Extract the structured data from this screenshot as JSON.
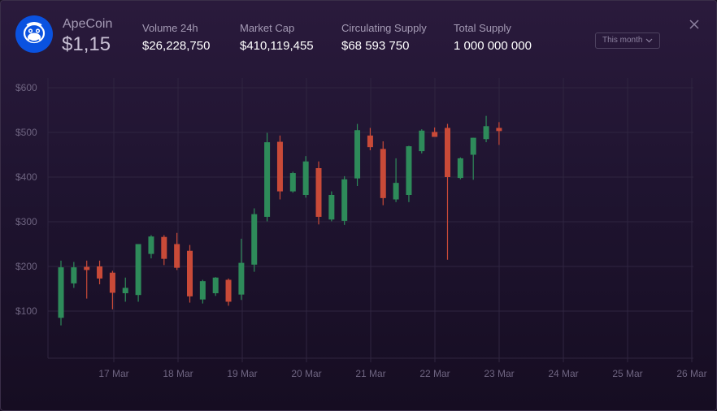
{
  "header": {
    "coin_name": "ApeCoin",
    "price": "$1,15",
    "stats": [
      {
        "label": "Volume 24h",
        "value": "$26,228,750"
      },
      {
        "label": "Market Cap",
        "value": "$410,119,455"
      },
      {
        "label": "Circulating Supply",
        "value": "$68 593 750"
      },
      {
        "label": "Total Supply",
        "value": "1 000 000 000"
      }
    ],
    "timeframe": "This month"
  },
  "icons": {
    "logo": "ape-logo-icon",
    "dropdown": "chevron-down-icon",
    "close": "close-icon"
  },
  "colors": {
    "up": "#2e8b5a",
    "down": "#c94a38",
    "grid": "#2f2540",
    "tick": "#6e6480",
    "logo_bg": "#0a52e0"
  },
  "chart_data": {
    "type": "candlestick",
    "x_tick_labels": [
      "17 Mar",
      "18 Mar",
      "19 Mar",
      "20 Mar",
      "21 Mar",
      "22 Mar",
      "23 Mar",
      "24 Mar",
      "25 Mar",
      "26 Mar"
    ],
    "y_tick_labels": [
      "$100",
      "$200",
      "$300",
      "$400",
      "$500",
      "$600"
    ],
    "ylim": [
      0,
      615
    ],
    "grid": true,
    "candles": [
      {
        "o": 85,
        "h": 213,
        "l": 68,
        "c": 198
      },
      {
        "o": 162,
        "h": 210,
        "l": 152,
        "c": 198
      },
      {
        "o": 199,
        "h": 213,
        "l": 128,
        "c": 192
      },
      {
        "o": 200,
        "h": 213,
        "l": 160,
        "c": 173
      },
      {
        "o": 186,
        "h": 190,
        "l": 104,
        "c": 141
      },
      {
        "o": 140,
        "h": 175,
        "l": 121,
        "c": 152
      },
      {
        "o": 136,
        "h": 250,
        "l": 121,
        "c": 250
      },
      {
        "o": 228,
        "h": 270,
        "l": 218,
        "c": 267
      },
      {
        "o": 266,
        "h": 270,
        "l": 203,
        "c": 217
      },
      {
        "o": 250,
        "h": 275,
        "l": 192,
        "c": 197
      },
      {
        "o": 235,
        "h": 248,
        "l": 119,
        "c": 133
      },
      {
        "o": 126,
        "h": 170,
        "l": 117,
        "c": 167
      },
      {
        "o": 140,
        "h": 176,
        "l": 134,
        "c": 175
      },
      {
        "o": 170,
        "h": 173,
        "l": 112,
        "c": 121
      },
      {
        "o": 137,
        "h": 262,
        "l": 125,
        "c": 208
      },
      {
        "o": 204,
        "h": 330,
        "l": 188,
        "c": 317
      },
      {
        "o": 311,
        "h": 499,
        "l": 301,
        "c": 478
      },
      {
        "o": 479,
        "h": 493,
        "l": 350,
        "c": 368
      },
      {
        "o": 368,
        "h": 412,
        "l": 365,
        "c": 409
      },
      {
        "o": 360,
        "h": 447,
        "l": 354,
        "c": 435
      },
      {
        "o": 420,
        "h": 435,
        "l": 294,
        "c": 311
      },
      {
        "o": 305,
        "h": 368,
        "l": 301,
        "c": 360
      },
      {
        "o": 302,
        "h": 402,
        "l": 293,
        "c": 395
      },
      {
        "o": 397,
        "h": 519,
        "l": 380,
        "c": 505
      },
      {
        "o": 493,
        "h": 510,
        "l": 460,
        "c": 467
      },
      {
        "o": 463,
        "h": 480,
        "l": 337,
        "c": 353
      },
      {
        "o": 350,
        "h": 442,
        "l": 344,
        "c": 387
      },
      {
        "o": 360,
        "h": 470,
        "l": 344,
        "c": 469
      },
      {
        "o": 458,
        "h": 507,
        "l": 453,
        "c": 504
      },
      {
        "o": 501,
        "h": 511,
        "l": 491,
        "c": 490
      },
      {
        "o": 510,
        "h": 519,
        "l": 215,
        "c": 400
      },
      {
        "o": 398,
        "h": 444,
        "l": 395,
        "c": 442
      },
      {
        "o": 450,
        "h": 488,
        "l": 394,
        "c": 488
      },
      {
        "o": 485,
        "h": 537,
        "l": 478,
        "c": 514
      },
      {
        "o": 510,
        "h": 523,
        "l": 472,
        "c": 503
      }
    ]
  }
}
